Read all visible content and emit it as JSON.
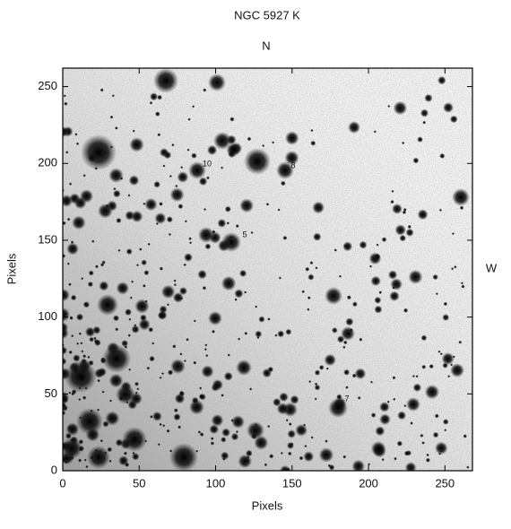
{
  "chart_data": {
    "type": "image",
    "title": "NGC 5927 K",
    "north_label": "N",
    "west_label": "W",
    "xlabel": "Pixels",
    "ylabel": "Pixels",
    "xlim": [
      0,
      268
    ],
    "ylim": [
      0,
      262
    ],
    "xticks": [
      0,
      50,
      100,
      150,
      200,
      250
    ],
    "yticks": [
      0,
      50,
      100,
      150,
      200,
      250
    ],
    "annotations": [
      "10",
      "8",
      "5",
      "7"
    ]
  }
}
